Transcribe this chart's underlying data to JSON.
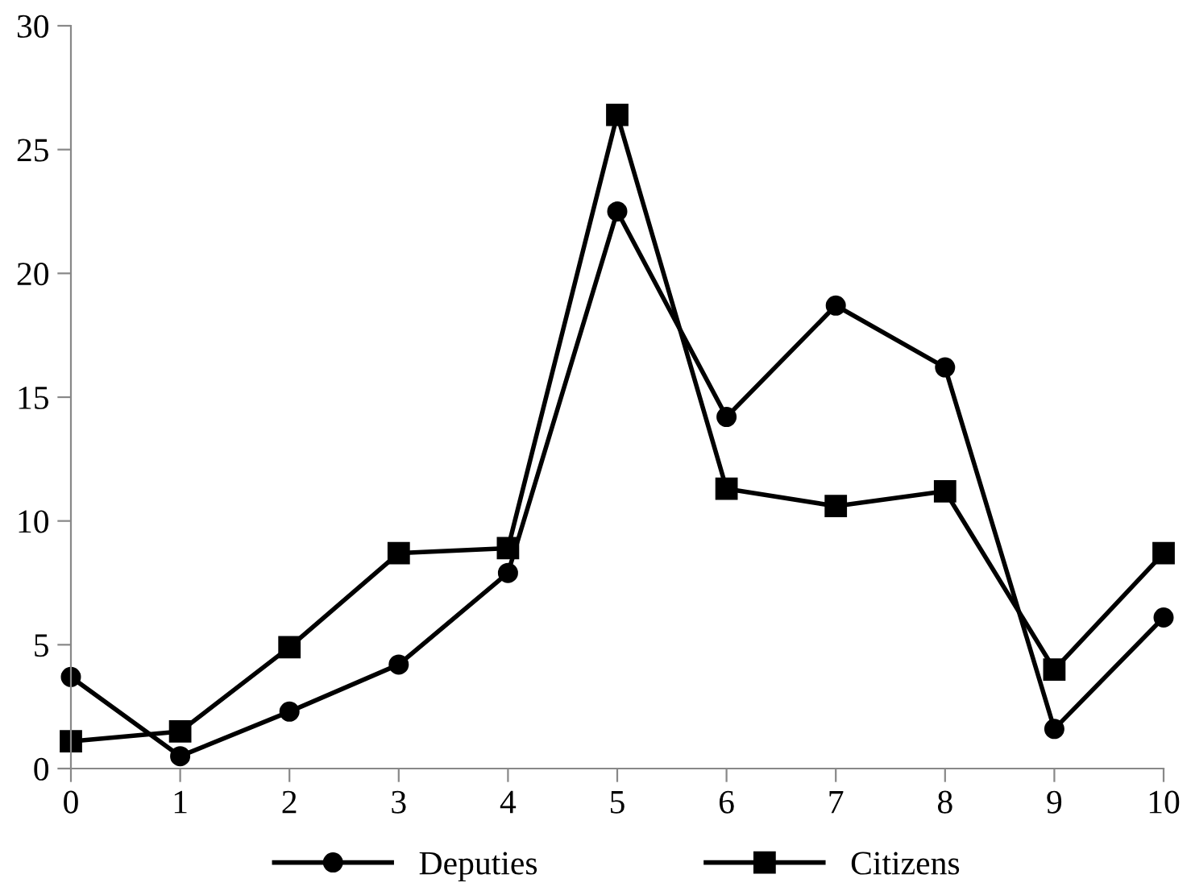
{
  "chart_data": {
    "type": "line",
    "x": [
      0,
      1,
      2,
      3,
      4,
      5,
      6,
      7,
      8,
      9,
      10
    ],
    "series": [
      {
        "name": "Deputies",
        "color": "#000000",
        "marker": "circle",
        "values": [
          3.7,
          0.5,
          2.3,
          4.2,
          7.9,
          22.5,
          14.2,
          18.7,
          16.2,
          1.6,
          6.1
        ]
      },
      {
        "name": "Citizens",
        "color": "#000000",
        "marker": "square",
        "values": [
          1.1,
          1.5,
          4.9,
          8.7,
          8.9,
          26.4,
          11.3,
          10.6,
          11.2,
          4.0,
          8.7
        ]
      }
    ],
    "xlim": [
      0,
      10
    ],
    "xticks": [
      0,
      1,
      2,
      3,
      4,
      5,
      6,
      7,
      8,
      9,
      10
    ],
    "ylim": [
      0,
      30
    ],
    "yticks": [
      0,
      5,
      10,
      15,
      20,
      25,
      30
    ],
    "grid": false,
    "legend": "bottom",
    "line_style": "solid"
  }
}
